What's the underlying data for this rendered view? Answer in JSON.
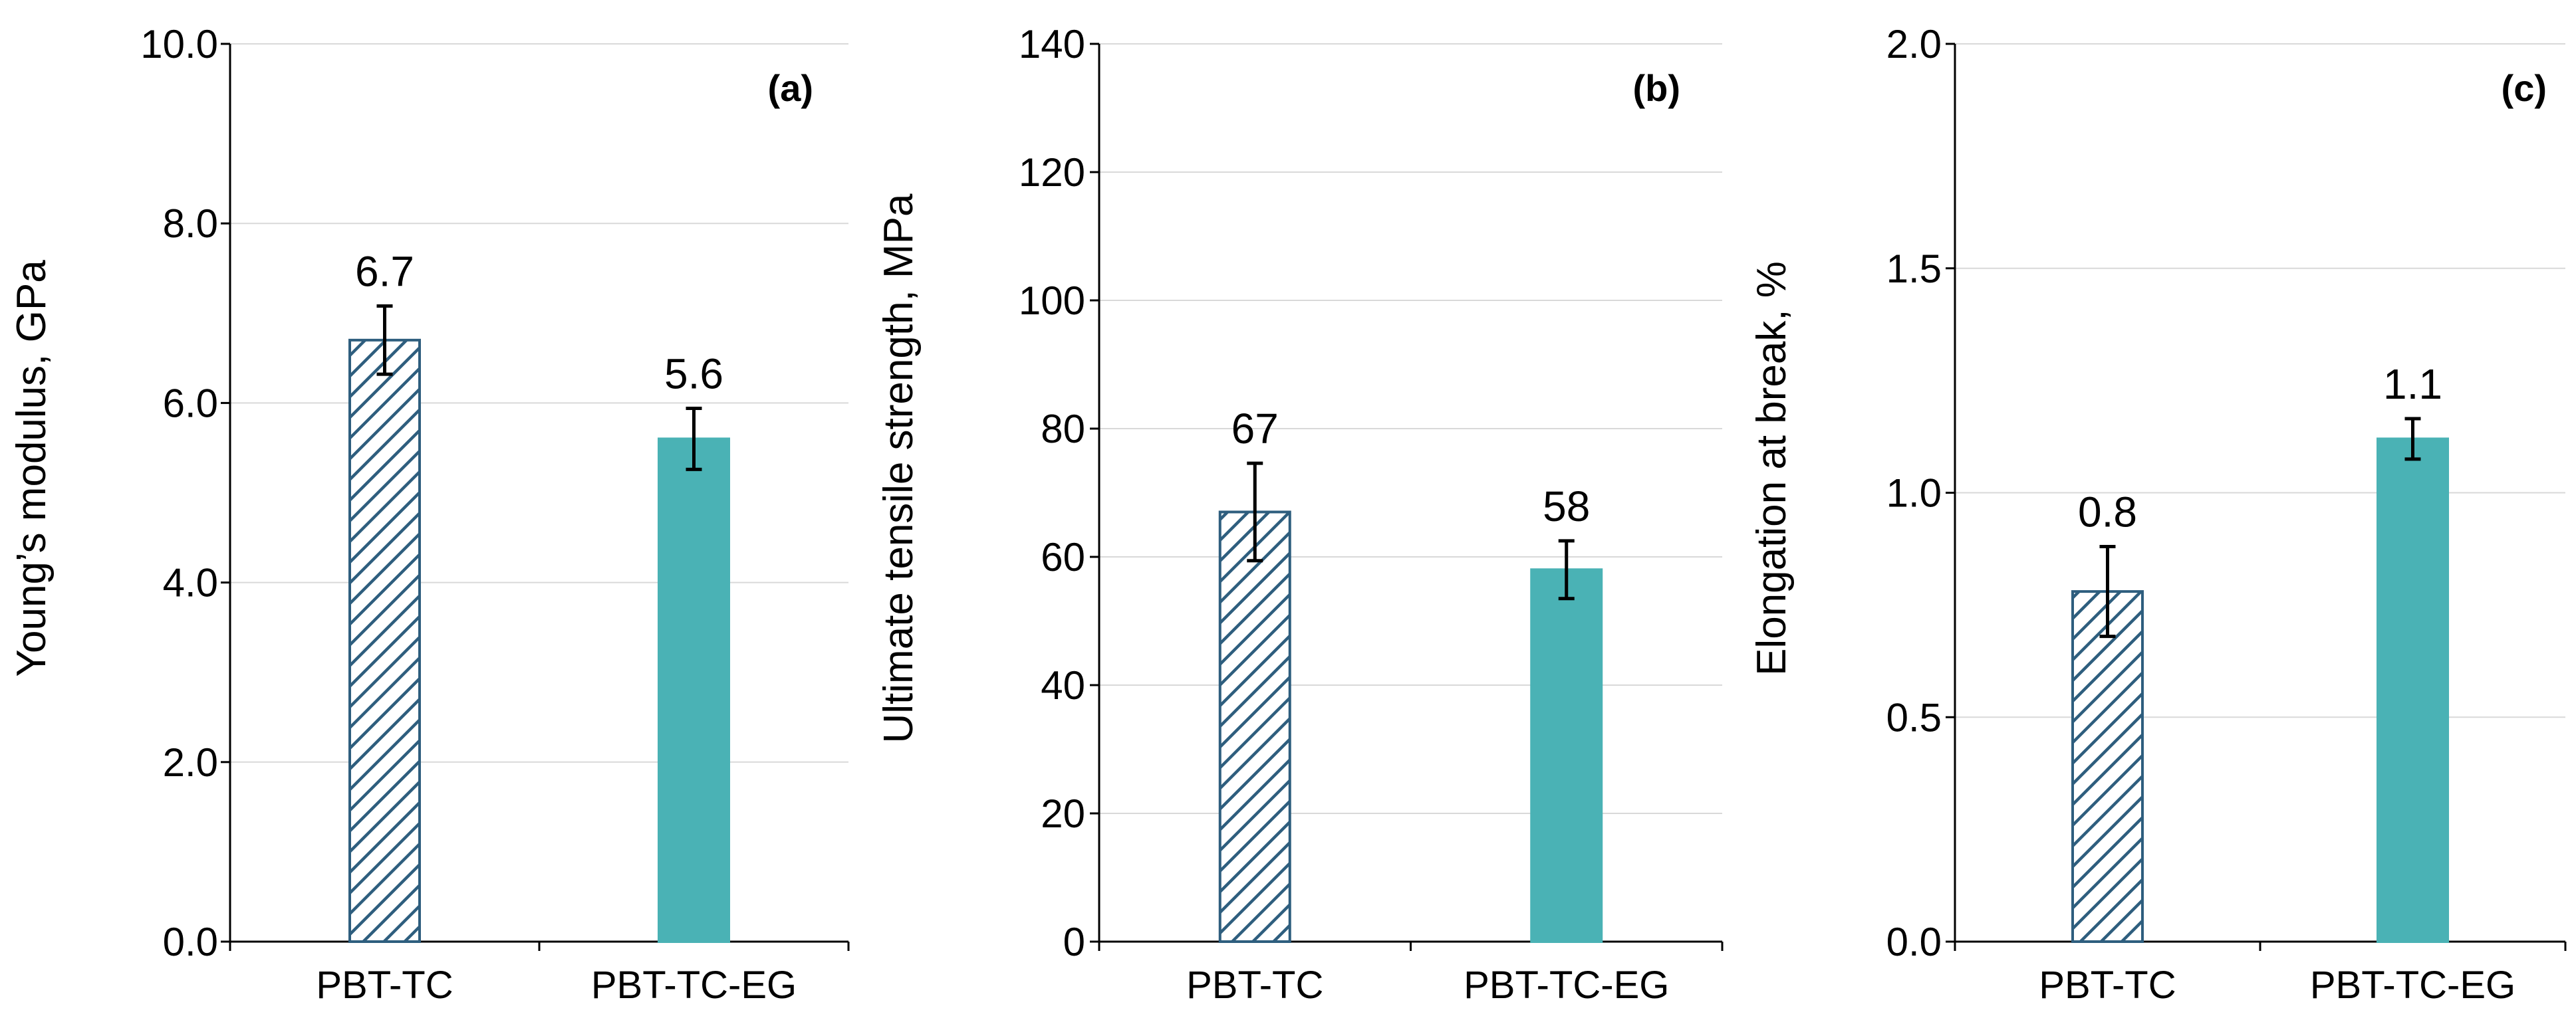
{
  "chart_data": [
    {
      "type": "bar",
      "panel_label": "(a)",
      "ylabel": "Young’s modulus, GPa",
      "categories": [
        "PBT-TC",
        "PBT-TC-EG"
      ],
      "values": [
        6.7,
        5.6
      ],
      "error": [
        0.38,
        0.34
      ],
      "value_labels": [
        "6.7",
        "5.6"
      ],
      "ylim": [
        0,
        10
      ],
      "yticks": [
        0,
        2,
        4,
        6,
        8,
        10
      ],
      "ytick_labels": [
        "0.0",
        "2.0",
        "4.0",
        "6.0",
        "8.0",
        "10.0"
      ],
      "grid": true
    },
    {
      "type": "bar",
      "panel_label": "(b)",
      "ylabel": "Ultimate tensile strength, MPa",
      "categories": [
        "PBT-TC",
        "PBT-TC-EG"
      ],
      "values": [
        67,
        58
      ],
      "error": [
        7.6,
        4.5
      ],
      "value_labels": [
        "67",
        "58"
      ],
      "ylim": [
        0,
        140
      ],
      "yticks": [
        0,
        20,
        40,
        60,
        80,
        100,
        120,
        140
      ],
      "ytick_labels": [
        "0",
        "20",
        "40",
        "60",
        "80",
        "100",
        "120",
        "140"
      ],
      "grid": true
    },
    {
      "type": "bar",
      "panel_label": "(c)",
      "ylabel": "Elongation at break, %",
      "categories": [
        "PBT-TC",
        "PBT-TC-EG"
      ],
      "values": [
        0.78,
        1.12
      ],
      "error": [
        0.1,
        0.045
      ],
      "value_labels": [
        "0.8",
        "1.1"
      ],
      "ylim": [
        0,
        2
      ],
      "yticks": [
        0,
        0.5,
        1,
        1.5,
        2
      ],
      "ytick_labels": [
        "0.0",
        "0.5",
        "1.0",
        "1.5",
        "2.0"
      ],
      "grid": true
    }
  ],
  "colors": {
    "hatch_bar_stroke": "#2E5E7E",
    "solid_bar_fill": "#4AB2B5",
    "grid": "#D9D9D9",
    "axis": "#000000"
  }
}
